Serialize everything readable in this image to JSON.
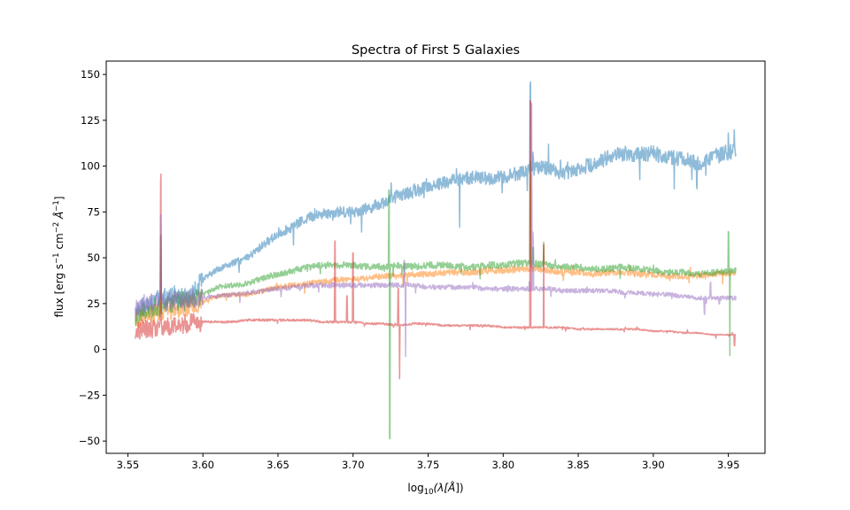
{
  "chart_data": {
    "type": "line",
    "title": "Spectra of First 5 Galaxies",
    "xlabel_parts": [
      "log",
      "10",
      "(λ[",
      "Å",
      "])"
    ],
    "ylabel_parts": [
      "flux [erg s",
      "−1",
      " cm",
      "−2",
      " ",
      "Å",
      "−1",
      "]"
    ],
    "xlim": [
      3.5356,
      3.9744
    ],
    "ylim": [
      -56.7,
      157.3
    ],
    "xticks": [
      3.55,
      3.6,
      3.65,
      3.7,
      3.75,
      3.8,
      3.85,
      3.9,
      3.95
    ],
    "xtick_labels": [
      "3.55",
      "3.60",
      "3.65",
      "3.70",
      "3.75",
      "3.80",
      "3.85",
      "3.90",
      "3.95"
    ],
    "yticks": [
      -50,
      -25,
      0,
      25,
      50,
      75,
      100,
      125,
      150
    ],
    "ytick_labels": [
      "−50",
      "−25",
      "0",
      "25",
      "50",
      "75",
      "100",
      "125",
      "150"
    ],
    "legend": "none",
    "grid": false,
    "series": [
      {
        "color": "#1f77b4",
        "opacity": 0.5,
        "points": [
          [
            3.555,
            19
          ],
          [
            3.56,
            24
          ],
          [
            3.57,
            27
          ],
          [
            3.58,
            29
          ],
          [
            3.59,
            28
          ],
          [
            3.6,
            38
          ],
          [
            3.61,
            44
          ],
          [
            3.62,
            47
          ],
          [
            3.63,
            50
          ],
          [
            3.64,
            57
          ],
          [
            3.65,
            63
          ],
          [
            3.66,
            67
          ],
          [
            3.67,
            72
          ],
          [
            3.68,
            74
          ],
          [
            3.69,
            75
          ],
          [
            3.7,
            75
          ],
          [
            3.71,
            77
          ],
          [
            3.72,
            80
          ],
          [
            3.73,
            84
          ],
          [
            3.74,
            86
          ],
          [
            3.75,
            89
          ],
          [
            3.76,
            91
          ],
          [
            3.77,
            93
          ],
          [
            3.78,
            94
          ],
          [
            3.79,
            93
          ],
          [
            3.8,
            94
          ],
          [
            3.81,
            96
          ],
          [
            3.82,
            99
          ],
          [
            3.83,
            99
          ],
          [
            3.84,
            96
          ],
          [
            3.85,
            99
          ],
          [
            3.86,
            101
          ],
          [
            3.87,
            105
          ],
          [
            3.88,
            107
          ],
          [
            3.89,
            106
          ],
          [
            3.9,
            107
          ],
          [
            3.91,
            105
          ],
          [
            3.92,
            104
          ],
          [
            3.93,
            101
          ],
          [
            3.94,
            105
          ],
          [
            3.955,
            109
          ]
        ],
        "features": [
          [
            3.57,
            8
          ],
          [
            3.771,
            -30
          ],
          [
            3.818,
            45
          ],
          [
            3.82,
            8
          ],
          [
            3.83,
            5
          ],
          [
            3.843,
            5
          ],
          [
            3.891,
            -15
          ],
          [
            3.929,
            -16
          ],
          [
            3.935,
            -8
          ],
          [
            3.95,
            7
          ]
        ]
      },
      {
        "color": "#ff7f0e",
        "opacity": 0.5,
        "points": [
          [
            3.555,
            15
          ],
          [
            3.56,
            18
          ],
          [
            3.57,
            20
          ],
          [
            3.58,
            21
          ],
          [
            3.59,
            23
          ],
          [
            3.6,
            26
          ],
          [
            3.61,
            29
          ],
          [
            3.62,
            30
          ],
          [
            3.63,
            30
          ],
          [
            3.64,
            32
          ],
          [
            3.65,
            34
          ],
          [
            3.66,
            35
          ],
          [
            3.67,
            36
          ],
          [
            3.68,
            37
          ],
          [
            3.69,
            38
          ],
          [
            3.7,
            38
          ],
          [
            3.71,
            39
          ],
          [
            3.72,
            40
          ],
          [
            3.73,
            40
          ],
          [
            3.74,
            41
          ],
          [
            3.75,
            41
          ],
          [
            3.76,
            42
          ],
          [
            3.77,
            42
          ],
          [
            3.78,
            42
          ],
          [
            3.79,
            43
          ],
          [
            3.8,
            43
          ],
          [
            3.81,
            44
          ],
          [
            3.82,
            44
          ],
          [
            3.83,
            43
          ],
          [
            3.84,
            42
          ],
          [
            3.85,
            42
          ],
          [
            3.86,
            41
          ],
          [
            3.87,
            42
          ],
          [
            3.88,
            42
          ],
          [
            3.89,
            41
          ],
          [
            3.9,
            41
          ],
          [
            3.91,
            40
          ],
          [
            3.92,
            40
          ],
          [
            3.93,
            40
          ],
          [
            3.94,
            41
          ],
          [
            3.955,
            42
          ]
        ],
        "features": [
          [
            3.572,
            40
          ],
          [
            3.818,
            50
          ],
          [
            3.827,
            15
          ]
        ]
      },
      {
        "color": "#2ca02c",
        "opacity": 0.5,
        "points": [
          [
            3.555,
            17
          ],
          [
            3.56,
            20
          ],
          [
            3.57,
            23
          ],
          [
            3.58,
            25
          ],
          [
            3.59,
            27
          ],
          [
            3.6,
            30
          ],
          [
            3.61,
            34
          ],
          [
            3.62,
            35
          ],
          [
            3.63,
            36
          ],
          [
            3.64,
            39
          ],
          [
            3.65,
            41
          ],
          [
            3.66,
            43
          ],
          [
            3.67,
            45
          ],
          [
            3.68,
            46
          ],
          [
            3.69,
            46
          ],
          [
            3.7,
            46
          ],
          [
            3.71,
            45
          ],
          [
            3.72,
            45
          ],
          [
            3.73,
            46
          ],
          [
            3.74,
            45
          ],
          [
            3.75,
            46
          ],
          [
            3.76,
            46
          ],
          [
            3.77,
            45
          ],
          [
            3.78,
            45
          ],
          [
            3.79,
            46
          ],
          [
            3.8,
            46
          ],
          [
            3.81,
            47
          ],
          [
            3.82,
            47
          ],
          [
            3.83,
            46
          ],
          [
            3.84,
            45
          ],
          [
            3.85,
            45
          ],
          [
            3.86,
            44
          ],
          [
            3.87,
            44
          ],
          [
            3.88,
            45
          ],
          [
            3.89,
            44
          ],
          [
            3.9,
            43
          ],
          [
            3.91,
            42
          ],
          [
            3.92,
            42
          ],
          [
            3.93,
            41
          ],
          [
            3.94,
            42
          ],
          [
            3.955,
            43
          ]
        ],
        "features": [
          [
            3.572,
            35
          ],
          [
            3.724,
            42
          ],
          [
            3.7245,
            -93
          ],
          [
            3.818,
            55
          ],
          [
            3.82,
            8
          ],
          [
            3.827,
            12
          ],
          [
            3.95,
            22
          ],
          [
            3.951,
            -45
          ]
        ]
      },
      {
        "color": "#d62728",
        "opacity": 0.5,
        "points": [
          [
            3.555,
            10
          ],
          [
            3.56,
            11
          ],
          [
            3.57,
            12
          ],
          [
            3.58,
            13
          ],
          [
            3.59,
            14
          ],
          [
            3.6,
            15
          ],
          [
            3.61,
            15
          ],
          [
            3.62,
            15
          ],
          [
            3.63,
            16
          ],
          [
            3.64,
            16
          ],
          [
            3.65,
            16
          ],
          [
            3.66,
            16
          ],
          [
            3.67,
            16
          ],
          [
            3.68,
            15
          ],
          [
            3.69,
            15
          ],
          [
            3.7,
            15
          ],
          [
            3.71,
            14
          ],
          [
            3.72,
            14
          ],
          [
            3.73,
            13
          ],
          [
            3.74,
            14
          ],
          [
            3.75,
            14
          ],
          [
            3.76,
            13
          ],
          [
            3.77,
            13
          ],
          [
            3.78,
            13
          ],
          [
            3.79,
            13
          ],
          [
            3.8,
            12
          ],
          [
            3.81,
            12
          ],
          [
            3.82,
            12
          ],
          [
            3.83,
            12
          ],
          [
            3.84,
            12
          ],
          [
            3.85,
            11
          ],
          [
            3.86,
            11
          ],
          [
            3.87,
            11
          ],
          [
            3.88,
            11
          ],
          [
            3.89,
            11
          ],
          [
            3.9,
            10
          ],
          [
            3.91,
            10
          ],
          [
            3.92,
            9
          ],
          [
            3.93,
            9
          ],
          [
            3.94,
            8
          ],
          [
            3.955,
            8
          ]
        ],
        "features": [
          [
            3.572,
            84
          ],
          [
            3.688,
            44
          ],
          [
            3.696,
            14
          ],
          [
            3.7,
            38
          ],
          [
            3.73,
            20
          ],
          [
            3.731,
            -29
          ],
          [
            3.818,
            123
          ],
          [
            3.827,
            45
          ],
          [
            3.954,
            -6
          ]
        ]
      },
      {
        "color": "#9467bd",
        "opacity": 0.5,
        "points": [
          [
            3.555,
            22
          ],
          [
            3.56,
            24
          ],
          [
            3.57,
            26
          ],
          [
            3.58,
            27
          ],
          [
            3.59,
            28
          ],
          [
            3.6,
            28
          ],
          [
            3.61,
            29
          ],
          [
            3.62,
            30
          ],
          [
            3.63,
            31
          ],
          [
            3.64,
            32
          ],
          [
            3.65,
            33
          ],
          [
            3.66,
            34
          ],
          [
            3.67,
            35
          ],
          [
            3.68,
            35
          ],
          [
            3.69,
            35
          ],
          [
            3.7,
            35
          ],
          [
            3.71,
            35
          ],
          [
            3.72,
            35
          ],
          [
            3.73,
            35
          ],
          [
            3.74,
            35
          ],
          [
            3.75,
            34
          ],
          [
            3.76,
            34
          ],
          [
            3.77,
            34
          ],
          [
            3.78,
            34
          ],
          [
            3.79,
            33
          ],
          [
            3.8,
            33
          ],
          [
            3.81,
            33
          ],
          [
            3.82,
            33
          ],
          [
            3.83,
            33
          ],
          [
            3.84,
            32
          ],
          [
            3.85,
            32
          ],
          [
            3.86,
            32
          ],
          [
            3.87,
            32
          ],
          [
            3.88,
            31
          ],
          [
            3.89,
            31
          ],
          [
            3.9,
            30
          ],
          [
            3.91,
            30
          ],
          [
            3.92,
            29
          ],
          [
            3.93,
            28
          ],
          [
            3.94,
            28
          ],
          [
            3.955,
            28
          ]
        ],
        "features": [
          [
            3.572,
            42
          ],
          [
            3.734,
            14
          ],
          [
            3.735,
            -40
          ],
          [
            3.819,
            100
          ],
          [
            3.82,
            30
          ],
          [
            3.934,
            -8
          ],
          [
            3.938,
            8
          ]
        ]
      }
    ]
  }
}
